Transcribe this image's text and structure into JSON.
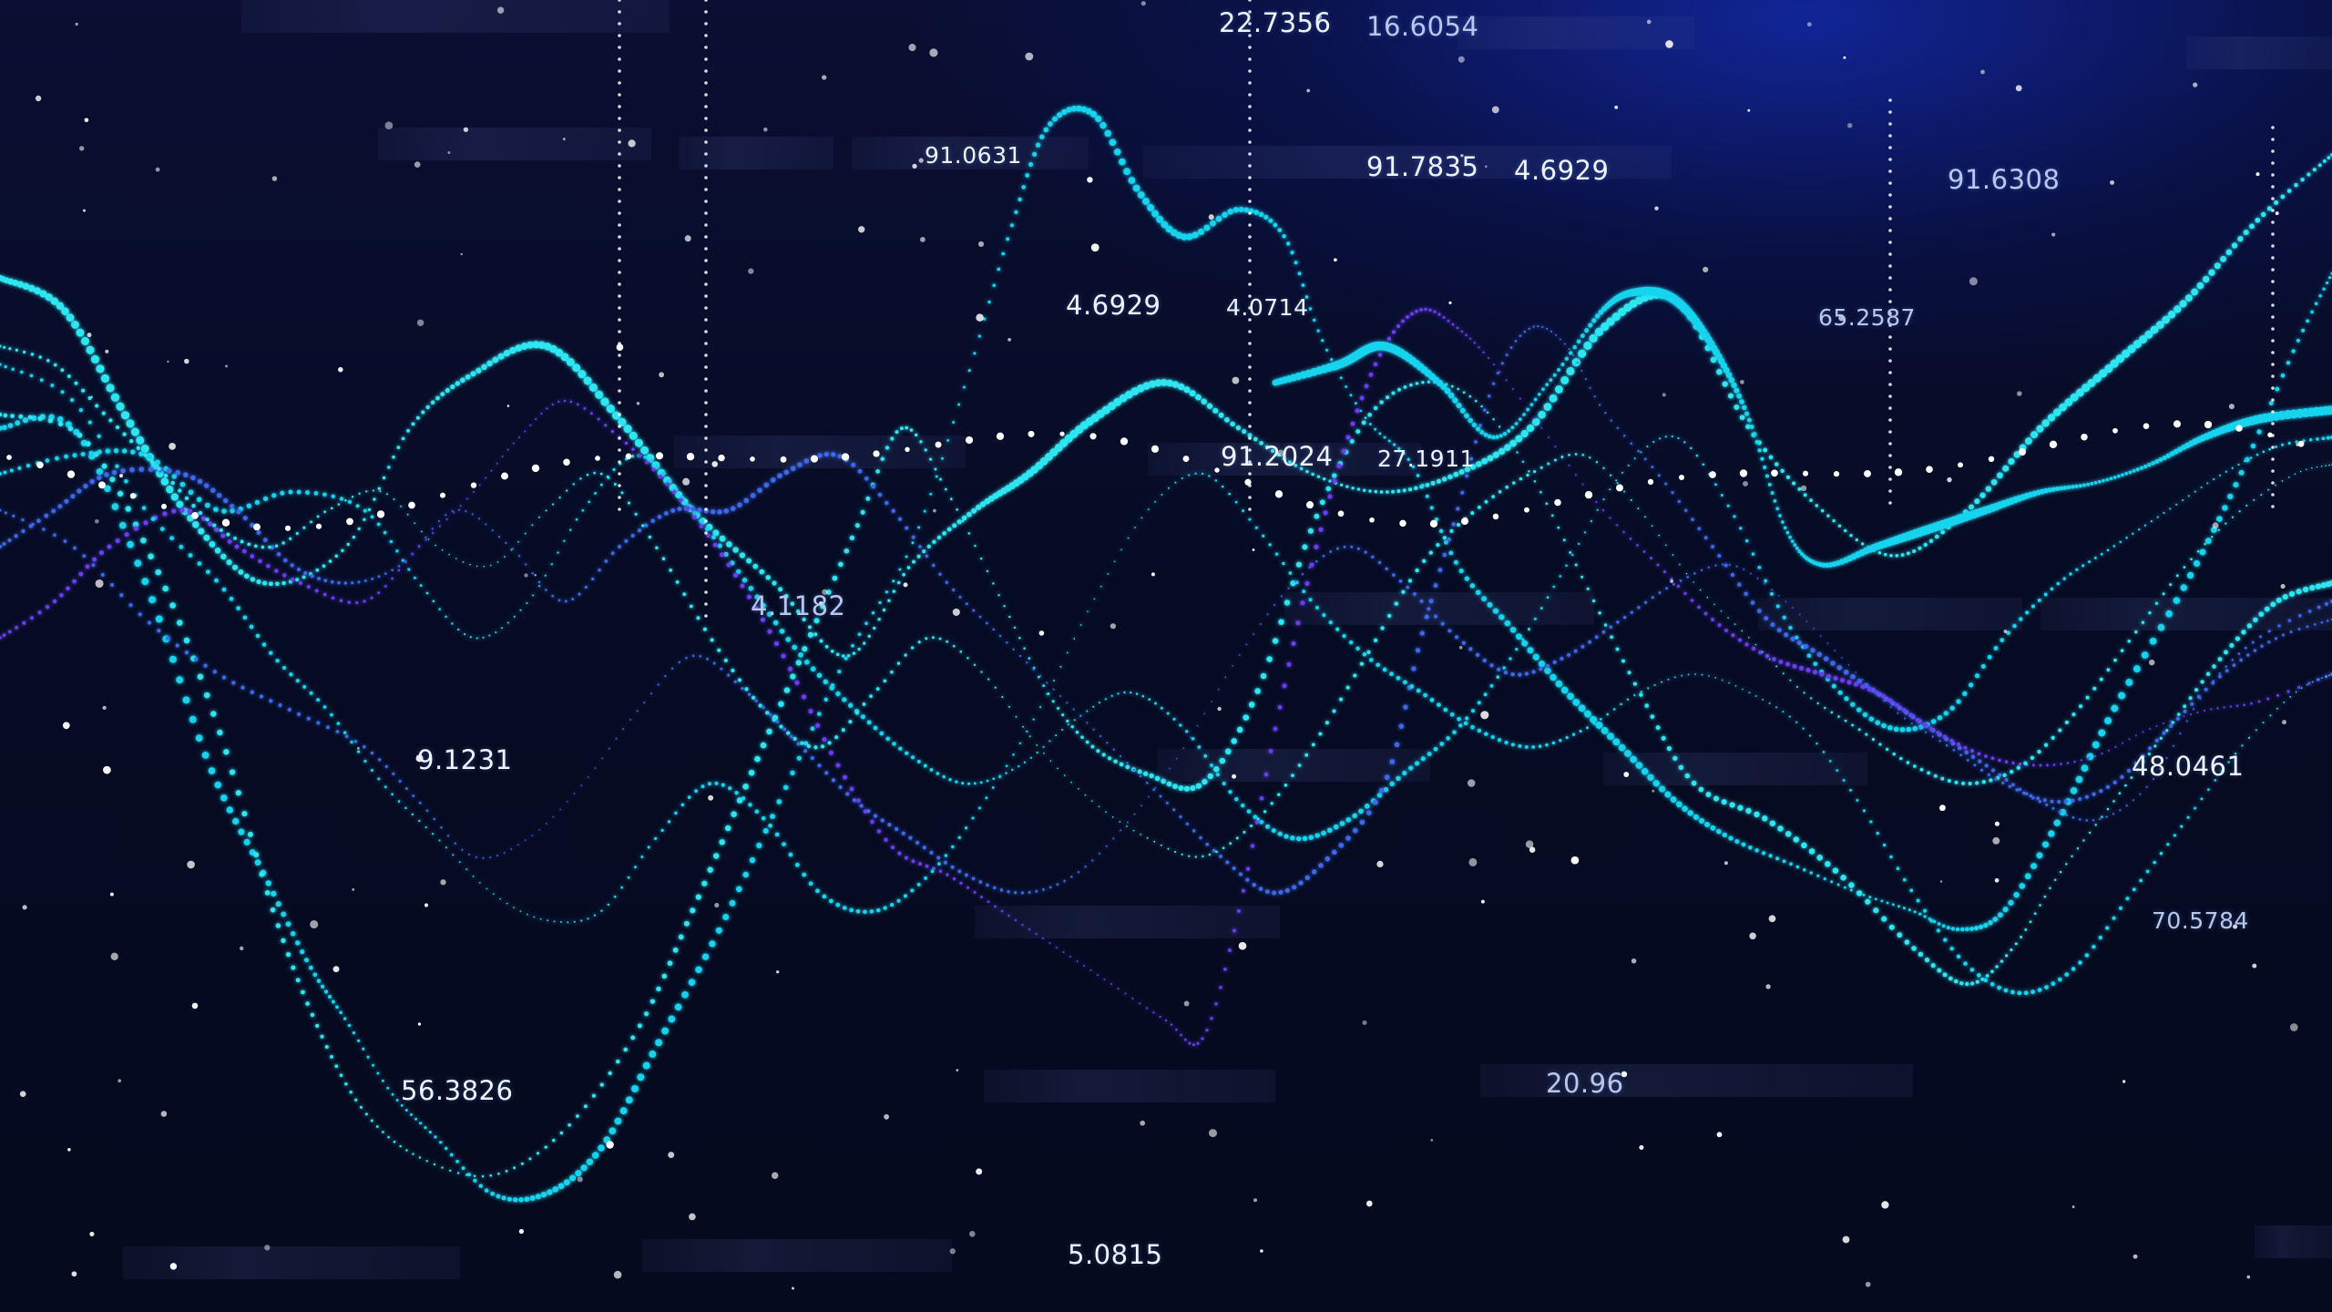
{
  "scene": {
    "type": "abstract data visualization",
    "palette": {
      "background": "#050a1e",
      "glow": "#1a2fb8",
      "cyan": "#19d3ee",
      "aqua": "#2fe6f2",
      "blue": "#3d67e8",
      "violet": "#6a3df0",
      "white": "#ffffff"
    }
  },
  "labels": [
    "22.7356",
    "16.6054",
    "91.0631",
    "91.7835",
    "4.6929",
    "91.6308",
    "4.6929",
    "4.0714",
    "65.2587",
    "91.2024",
    "27.1911",
    "4.1182",
    "9.1231",
    "48.0461",
    "70.5784",
    "56.3826",
    "20.96",
    "5.0815"
  ]
}
